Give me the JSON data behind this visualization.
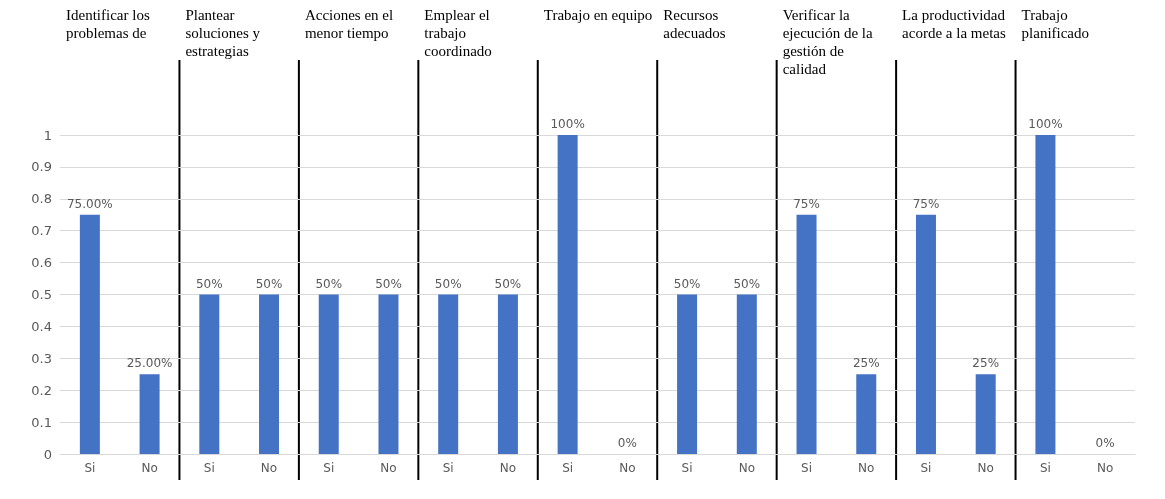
{
  "chart_data": {
    "type": "bar",
    "categories": [
      "Si",
      "No",
      "Si",
      "No",
      "Si",
      "No",
      "Si",
      "No",
      "Si",
      "No",
      "Si",
      "No",
      "Si",
      "No",
      "Si",
      "No",
      "Si",
      "No"
    ],
    "values": [
      0.75,
      0.25,
      0.5,
      0.5,
      0.5,
      0.5,
      0.5,
      0.5,
      1,
      0,
      0.5,
      0.5,
      0.75,
      0.25,
      0.75,
      0.25,
      1,
      0
    ],
    "value_labels": [
      "75.00%",
      "25.00%",
      "50%",
      "50%",
      "50%",
      "50%",
      "50%",
      "50%",
      "100%",
      "0%",
      "50%",
      "50%",
      "75%",
      "25%",
      "75%",
      "25%",
      "100%",
      "0%"
    ],
    "color": "#4472c4",
    "ylim": [
      0,
      1
    ],
    "yticks": [
      0,
      0.1,
      0.2,
      0.3,
      0.4,
      0.5,
      0.6,
      0.7,
      0.8,
      0.9,
      1
    ],
    "grid": "y",
    "annotations": [
      "Identificar los problemas de",
      "Plantear soluciones y estrategias",
      "Acciones en el menor tiempo",
      "Emplear el trabajo coordinado",
      "Trabajo en equipo",
      "Recursos adecuados",
      "Verificar la ejecución de la gestión de calidad",
      "La productividad acorde a la metas",
      "Trabajo planificado"
    ]
  }
}
